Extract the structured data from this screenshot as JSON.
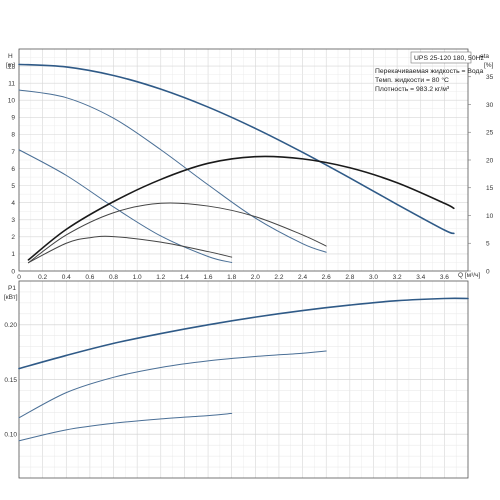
{
  "chart_data": [
    {
      "type": "line",
      "panel": "head",
      "ylabel": "H",
      "ylabel_unit": "[m]",
      "y2label": "eta",
      "y2label_unit": "[%]",
      "xlabel": "Q [м³/ч]",
      "title": "UPS 25-120 180, 50Hz",
      "info_lines": [
        "Перекачиваемая жидкость = Вода",
        "Темп. жидкости = 80 °C",
        "Плотность = 983.2 кг/м³"
      ],
      "xlim": [
        0,
        3.8
      ],
      "ylim": [
        0,
        13
      ],
      "y2lim": [
        0,
        40
      ],
      "x_ticks": [
        "0",
        "0.2",
        "0.4",
        "0.6",
        "0.8",
        "1.0",
        "1.2",
        "1.4",
        "1.6",
        "1.8",
        "2.0",
        "2.2",
        "2.4",
        "2.6",
        "2.8",
        "3.0",
        "3.2",
        "3.4",
        "3.6"
      ],
      "y_ticks": [
        "0",
        "1",
        "2",
        "3",
        "4",
        "5",
        "6",
        "7",
        "8",
        "9",
        "10",
        "11",
        "12"
      ],
      "y2_ticks": [
        "0",
        "5",
        "10",
        "15",
        "20",
        "25",
        "30",
        "35"
      ],
      "grid": true,
      "series": [
        {
          "curve": "head",
          "color": "#2f5a87",
          "width": 1.6,
          "x": [
            0,
            0.4,
            0.8,
            1.2,
            1.6,
            2.0,
            2.4,
            2.8,
            3.2,
            3.6,
            3.68
          ],
          "y": [
            12.1,
            11.95,
            11.45,
            10.65,
            9.6,
            8.35,
            6.95,
            5.45,
            3.9,
            2.4,
            2.2
          ]
        },
        {
          "curve": "head",
          "color": "#4a6f96",
          "width": 1.0,
          "x": [
            0,
            0.4,
            0.8,
            1.2,
            1.6,
            2.0,
            2.4,
            2.6
          ],
          "y": [
            10.6,
            10.15,
            8.95,
            7.1,
            5.05,
            3.1,
            1.6,
            1.1
          ]
        },
        {
          "curve": "head",
          "color": "#4a6f96",
          "width": 1.0,
          "x": [
            0,
            0.4,
            0.8,
            1.2,
            1.6,
            1.8
          ],
          "y": [
            7.1,
            5.6,
            3.75,
            2.05,
            0.85,
            0.5
          ]
        },
        {
          "curve": "efficiency",
          "color": "#1a1a1a",
          "width": 1.6,
          "x": [
            0.08,
            0.4,
            0.8,
            1.2,
            1.6,
            2.0,
            2.4,
            2.8,
            3.2,
            3.6,
            3.68
          ],
          "y2": [
            2,
            7.5,
            12.5,
            16.5,
            19.4,
            20.6,
            20.2,
            18.6,
            15.9,
            12.2,
            11.3
          ]
        },
        {
          "curve": "efficiency",
          "color": "#444444",
          "width": 1.0,
          "x": [
            0.08,
            0.4,
            0.8,
            1.2,
            1.6,
            2.0,
            2.4,
            2.6
          ],
          "y2": [
            1.5,
            6.5,
            10.5,
            12.2,
            11.7,
            9.8,
            6.5,
            4.5
          ]
        },
        {
          "curve": "efficiency",
          "color": "#444444",
          "width": 1.0,
          "x": [
            0.08,
            0.4,
            0.6,
            0.8,
            1.2,
            1.6,
            1.8
          ],
          "y2": [
            1.5,
            5.0,
            6.0,
            6.2,
            5.2,
            3.5,
            2.5
          ]
        }
      ]
    },
    {
      "type": "line",
      "panel": "power",
      "ylabel": "P1",
      "ylabel_unit": "[кВт]",
      "xlim": [
        0,
        3.8
      ],
      "ylim": [
        0.06,
        0.24
      ],
      "x_ticks": [],
      "y_ticks": [
        "0.10",
        "0.15",
        "0.20"
      ],
      "grid": true,
      "series": [
        {
          "color": "#2f5a87",
          "width": 1.6,
          "x": [
            0,
            0.4,
            0.8,
            1.2,
            1.6,
            2.0,
            2.4,
            2.8,
            3.2,
            3.6,
            3.8
          ],
          "y": [
            0.16,
            0.172,
            0.183,
            0.192,
            0.2,
            0.207,
            0.213,
            0.218,
            0.222,
            0.224,
            0.224
          ]
        },
        {
          "color": "#4a6f96",
          "width": 1.0,
          "x": [
            0,
            0.4,
            0.8,
            1.2,
            1.6,
            2.0,
            2.4,
            2.6
          ],
          "y": [
            0.115,
            0.138,
            0.152,
            0.161,
            0.167,
            0.171,
            0.174,
            0.176
          ]
        },
        {
          "color": "#4a6f96",
          "width": 1.0,
          "x": [
            0,
            0.4,
            0.8,
            1.2,
            1.6,
            1.8
          ],
          "y": [
            0.094,
            0.104,
            0.11,
            0.114,
            0.117,
            0.119
          ]
        }
      ]
    }
  ]
}
